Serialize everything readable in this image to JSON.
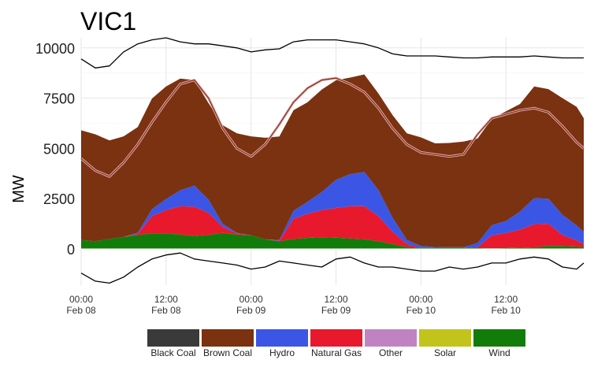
{
  "chart_data": {
    "type": "area",
    "title": "VIC1",
    "xlabel": "",
    "ylabel": "MW",
    "ylim": [
      -1800,
      10500
    ],
    "yticks": [
      0,
      2500,
      5000,
      7500,
      10000
    ],
    "ytick_labels": [
      "0",
      "2500",
      "5000",
      "7500",
      "10000"
    ],
    "xlim": [
      0,
      71
    ],
    "xticks": [
      {
        "hour": 0,
        "line1": "00:00",
        "line2": "Feb 08"
      },
      {
        "hour": 12,
        "line1": "12:00",
        "line2": "Feb 08"
      },
      {
        "hour": 24,
        "line1": "00:00",
        "line2": "Feb 09"
      },
      {
        "hour": 36,
        "line1": "12:00",
        "line2": "Feb 09"
      },
      {
        "hour": 48,
        "line1": "00:00",
        "line2": "Feb 10"
      },
      {
        "hour": 60,
        "line1": "12:00",
        "line2": "Feb 10"
      }
    ],
    "x_hours": [
      0,
      2,
      4,
      6,
      8,
      10,
      12,
      14,
      16,
      18,
      20,
      22,
      24,
      26,
      28,
      30,
      32,
      34,
      36,
      38,
      40,
      42,
      44,
      46,
      48,
      50,
      52,
      54,
      56,
      58,
      60,
      62,
      64,
      66,
      68,
      70,
      71
    ],
    "stack_order": [
      "Wind",
      "Natural Gas",
      "Hydro",
      "Brown Coal"
    ],
    "series": [
      {
        "name": "Wind",
        "color": "#127c0a",
        "values": [
          450,
          380,
          500,
          600,
          700,
          780,
          780,
          720,
          650,
          700,
          800,
          720,
          680,
          480,
          380,
          500,
          550,
          580,
          560,
          520,
          480,
          380,
          250,
          100,
          50,
          40,
          40,
          40,
          40,
          30,
          40,
          60,
          80,
          150,
          150,
          120,
          100
        ]
      },
      {
        "name": "Natural Gas",
        "color": "#e8192c",
        "values": [
          0,
          0,
          0,
          0,
          50,
          850,
          1150,
          1400,
          1450,
          1100,
          300,
          50,
          0,
          0,
          20,
          1000,
          1200,
          1350,
          1480,
          1600,
          1650,
          1250,
          600,
          150,
          0,
          0,
          0,
          0,
          50,
          650,
          750,
          900,
          1150,
          1100,
          550,
          300,
          150
        ]
      },
      {
        "name": "Hydro",
        "color": "#3b56e5",
        "values": [
          0,
          0,
          0,
          0,
          60,
          350,
          550,
          800,
          1050,
          650,
          150,
          30,
          0,
          0,
          40,
          400,
          600,
          900,
          1400,
          1600,
          1700,
          1300,
          700,
          200,
          100,
          60,
          50,
          50,
          200,
          500,
          600,
          900,
          1300,
          1250,
          1000,
          750,
          600
        ]
      },
      {
        "name": "Brown Coal",
        "color": "#7a3210",
        "values": [
          5450,
          5320,
          4900,
          5000,
          5250,
          5500,
          5600,
          5550,
          5250,
          4800,
          4900,
          4950,
          4920,
          5050,
          5150,
          5000,
          4950,
          5100,
          4950,
          4800,
          4850,
          4800,
          5100,
          5300,
          5400,
          5150,
          5180,
          5250,
          5200,
          5280,
          5450,
          5350,
          5550,
          5450,
          5800,
          5900,
          5650
        ]
      },
      {
        "name": "Black Coal",
        "color": "#3a3a3a",
        "values": []
      },
      {
        "name": "Other",
        "color": "#c083c2",
        "values": []
      },
      {
        "name": "Solar",
        "color": "#c2c41c",
        "values": []
      }
    ],
    "lines": [
      {
        "name": "upper-black-line",
        "color": "#000000",
        "values": [
          9450,
          9000,
          9100,
          9800,
          10200,
          10400,
          10500,
          10300,
          10200,
          10200,
          10100,
          10000,
          9800,
          9900,
          9950,
          10300,
          10400,
          10400,
          10400,
          10300,
          10200,
          10000,
          9700,
          9600,
          9600,
          9600,
          9550,
          9500,
          9500,
          9550,
          9550,
          9550,
          9600,
          9550,
          9500,
          9500,
          9500
        ]
      },
      {
        "name": "pink-double-line",
        "color": "#e6a8b0",
        "values": [
          4500,
          3900,
          3600,
          4300,
          5200,
          6300,
          7300,
          8200,
          8400,
          7500,
          6000,
          5000,
          4600,
          5200,
          6200,
          7300,
          8000,
          8400,
          8500,
          8200,
          7800,
          7000,
          6000,
          5200,
          4800,
          4700,
          4600,
          4700,
          5700,
          6500,
          6700,
          6900,
          7000,
          6800,
          6100,
          5300,
          5000
        ]
      },
      {
        "name": "lower-black-line",
        "color": "#000000",
        "values": [
          -1200,
          -1600,
          -1700,
          -1400,
          -900,
          -500,
          -300,
          -200,
          -500,
          -600,
          -700,
          -800,
          -1000,
          -900,
          -600,
          -700,
          -800,
          -900,
          -500,
          -400,
          -700,
          -900,
          -900,
          -1000,
          -1100,
          -1100,
          -900,
          -1000,
          -900,
          -700,
          -700,
          -500,
          -400,
          -500,
          -900,
          -1000,
          -700
        ]
      }
    ],
    "legend": {
      "placement": "bottom",
      "items": [
        {
          "name": "Black Coal",
          "color": "#3a3a3a"
        },
        {
          "name": "Brown Coal",
          "color": "#7a3210"
        },
        {
          "name": "Hydro",
          "color": "#3b56e5"
        },
        {
          "name": "Natural Gas",
          "color": "#e8192c"
        },
        {
          "name": "Other",
          "color": "#c083c2"
        },
        {
          "name": "Solar",
          "color": "#c2c41c"
        },
        {
          "name": "Wind",
          "color": "#127c0a"
        }
      ]
    },
    "grid": true
  }
}
